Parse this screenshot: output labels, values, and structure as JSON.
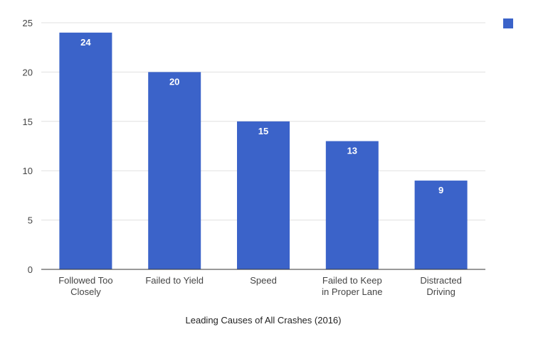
{
  "chart_data": {
    "type": "bar",
    "categories": [
      [
        "Followed Too",
        "Closely"
      ],
      [
        "Failed to Yield"
      ],
      [
        "Speed"
      ],
      [
        "Failed to Keep",
        "in Proper Lane"
      ],
      [
        "Distracted",
        "Driving"
      ]
    ],
    "values": [
      24,
      20,
      15,
      13,
      9
    ],
    "xlabel": "Leading Causes of All Crashes (2016)",
    "ylabel": "",
    "ylim": [
      0,
      25
    ],
    "yticks": [
      0,
      5,
      10,
      15,
      20,
      25
    ],
    "grid": true,
    "legend": {
      "position": "top-right",
      "label": ""
    },
    "colors": {
      "bar": "#3b63c9",
      "grid": "#e0e0e0",
      "axis": "#333333",
      "tick_text": "#444444",
      "value_text": "#ffffff"
    }
  }
}
